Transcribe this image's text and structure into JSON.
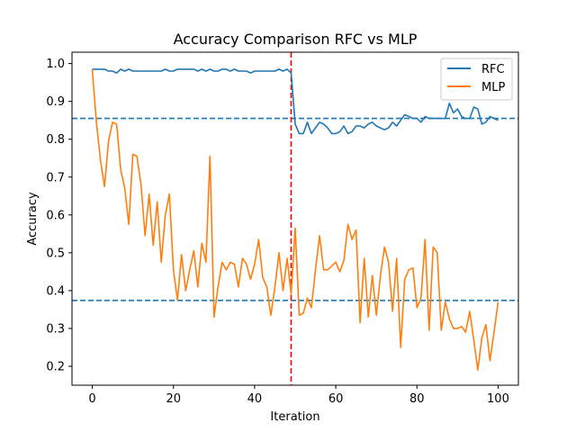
{
  "chart_data": {
    "type": "line",
    "title": "Accuracy Comparison RFC vs MLP",
    "xlabel": "Iteration",
    "ylabel": "Accuracy",
    "xlim": [
      -5,
      105
    ],
    "ylim": [
      0.15,
      1.03
    ],
    "xticks": [
      0,
      20,
      40,
      60,
      80,
      100
    ],
    "yticks": [
      0.2,
      0.3,
      0.4,
      0.5,
      0.6,
      0.7,
      0.8,
      0.9,
      1.0
    ],
    "xtick_labels": [
      "0",
      "20",
      "40",
      "60",
      "80",
      "100"
    ],
    "ytick_labels": [
      "0.2",
      "0.3",
      "0.4",
      "0.5",
      "0.6",
      "0.7",
      "0.8",
      "0.9",
      "1.0"
    ],
    "grid": false,
    "legend_position": "top-right",
    "series": [
      {
        "name": "RFC",
        "color": "#1f77b4",
        "x": [
          0,
          1,
          2,
          3,
          4,
          5,
          6,
          7,
          8,
          9,
          10,
          11,
          12,
          13,
          14,
          15,
          16,
          17,
          18,
          19,
          20,
          21,
          22,
          23,
          24,
          25,
          26,
          27,
          28,
          29,
          30,
          31,
          32,
          33,
          34,
          35,
          36,
          37,
          38,
          39,
          40,
          41,
          42,
          43,
          44,
          45,
          46,
          47,
          48,
          49,
          50,
          51,
          52,
          53,
          54,
          55,
          56,
          57,
          58,
          59,
          60,
          61,
          62,
          63,
          64,
          65,
          66,
          67,
          68,
          69,
          70,
          71,
          72,
          73,
          74,
          75,
          76,
          77,
          78,
          79,
          80,
          81,
          82,
          83,
          84,
          85,
          86,
          87,
          88,
          89,
          90,
          91,
          92,
          93,
          94,
          95,
          96,
          97,
          98,
          99,
          100
        ],
        "y": [
          0.985,
          0.985,
          0.985,
          0.985,
          0.98,
          0.98,
          0.975,
          0.985,
          0.98,
          0.985,
          0.98,
          0.98,
          0.98,
          0.98,
          0.98,
          0.98,
          0.98,
          0.98,
          0.985,
          0.98,
          0.98,
          0.985,
          0.985,
          0.985,
          0.985,
          0.985,
          0.98,
          0.985,
          0.98,
          0.985,
          0.98,
          0.98,
          0.985,
          0.985,
          0.98,
          0.985,
          0.98,
          0.98,
          0.98,
          0.975,
          0.98,
          0.98,
          0.98,
          0.98,
          0.98,
          0.98,
          0.985,
          0.98,
          0.985,
          0.975,
          0.84,
          0.815,
          0.815,
          0.845,
          0.815,
          0.83,
          0.845,
          0.84,
          0.83,
          0.815,
          0.815,
          0.82,
          0.835,
          0.815,
          0.82,
          0.835,
          0.835,
          0.83,
          0.84,
          0.845,
          0.835,
          0.83,
          0.825,
          0.83,
          0.845,
          0.835,
          0.85,
          0.865,
          0.86,
          0.855,
          0.855,
          0.845,
          0.86,
          0.855,
          0.855,
          0.855,
          0.855,
          0.855,
          0.895,
          0.87,
          0.88,
          0.86,
          0.855,
          0.855,
          0.885,
          0.88,
          0.84,
          0.845,
          0.86,
          0.855,
          0.85
        ]
      },
      {
        "name": "MLP",
        "color": "#ff7f0e",
        "x": [
          0,
          1,
          2,
          3,
          4,
          5,
          6,
          7,
          8,
          9,
          10,
          11,
          12,
          13,
          14,
          15,
          16,
          17,
          18,
          19,
          20,
          21,
          22,
          23,
          24,
          25,
          26,
          27,
          28,
          29,
          30,
          31,
          32,
          33,
          34,
          35,
          36,
          37,
          38,
          39,
          40,
          41,
          42,
          43,
          44,
          45,
          46,
          47,
          48,
          49,
          50,
          51,
          52,
          53,
          54,
          55,
          56,
          57,
          58,
          59,
          60,
          61,
          62,
          63,
          64,
          65,
          66,
          67,
          68,
          69,
          70,
          71,
          72,
          73,
          74,
          75,
          76,
          77,
          78,
          79,
          80,
          81,
          82,
          83,
          84,
          85,
          86,
          87,
          88,
          89,
          90,
          91,
          92,
          93,
          94,
          95,
          96,
          97,
          98,
          99,
          100
        ],
        "y": [
          0.985,
          0.845,
          0.745,
          0.675,
          0.795,
          0.845,
          0.84,
          0.72,
          0.67,
          0.575,
          0.76,
          0.755,
          0.68,
          0.545,
          0.655,
          0.52,
          0.635,
          0.475,
          0.6,
          0.655,
          0.455,
          0.375,
          0.495,
          0.4,
          0.455,
          0.505,
          0.41,
          0.525,
          0.475,
          0.755,
          0.33,
          0.41,
          0.475,
          0.455,
          0.475,
          0.47,
          0.41,
          0.485,
          0.47,
          0.43,
          0.47,
          0.535,
          0.435,
          0.41,
          0.335,
          0.41,
          0.5,
          0.4,
          0.485,
          0.39,
          0.565,
          0.335,
          0.34,
          0.38,
          0.355,
          0.455,
          0.545,
          0.455,
          0.455,
          0.465,
          0.475,
          0.45,
          0.48,
          0.575,
          0.535,
          0.56,
          0.315,
          0.485,
          0.33,
          0.44,
          0.335,
          0.44,
          0.515,
          0.475,
          0.345,
          0.485,
          0.25,
          0.43,
          0.455,
          0.46,
          0.355,
          0.38,
          0.535,
          0.295,
          0.515,
          0.5,
          0.295,
          0.37,
          0.325,
          0.3,
          0.3,
          0.305,
          0.29,
          0.345,
          0.27,
          0.19,
          0.275,
          0.31,
          0.215,
          0.29,
          0.37
        ]
      }
    ],
    "reference_lines": [
      {
        "orientation": "horizontal",
        "y": 0.855,
        "color": "#1f77b4",
        "style": "dashed"
      },
      {
        "orientation": "horizontal",
        "y": 0.374,
        "color": "#1f77b4",
        "style": "dashed"
      },
      {
        "orientation": "vertical",
        "x": 49,
        "color": "#ff0000",
        "style": "dashed"
      }
    ]
  }
}
